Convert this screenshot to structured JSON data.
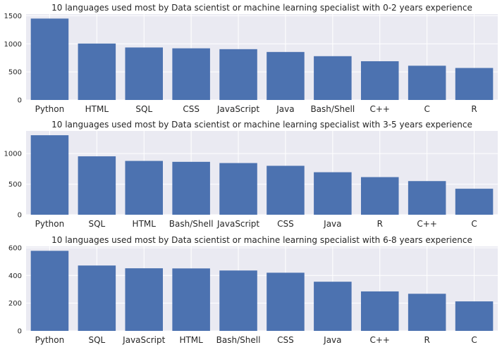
{
  "chart_data": [
    {
      "type": "bar",
      "title": "10 languages used most by Data scientist or machine learning specialist with 0-2 years experience",
      "categories": [
        "Python",
        "HTML",
        "SQL",
        "CSS",
        "JavaScript",
        "Java",
        "Bash/Shell",
        "C++",
        "C",
        "R"
      ],
      "values": [
        1450,
        1005,
        935,
        920,
        905,
        855,
        780,
        690,
        610,
        570
      ],
      "ylim": [
        0,
        1530
      ],
      "yticks": [
        0,
        500,
        1000,
        1500
      ],
      "grid": true,
      "bar_color": "#4c72b0",
      "axes_background": "#eaeaf2"
    },
    {
      "type": "bar",
      "title": "10 languages used most by Data scientist or machine learning specialist with 3-5 years experience",
      "categories": [
        "Python",
        "SQL",
        "HTML",
        "Bash/Shell",
        "JavaScript",
        "CSS",
        "Java",
        "R",
        "C++",
        "C"
      ],
      "values": [
        1300,
        955,
        880,
        865,
        845,
        800,
        695,
        615,
        550,
        425
      ],
      "ylim": [
        0,
        1370
      ],
      "yticks": [
        0,
        500,
        1000
      ],
      "grid": true,
      "bar_color": "#4c72b0",
      "axes_background": "#eaeaf2"
    },
    {
      "type": "bar",
      "title": "10 languages used most by Data scientist or machine learning specialist with 6-8 years experience",
      "categories": [
        "Python",
        "SQL",
        "JavaScript",
        "HTML",
        "Bash/Shell",
        "CSS",
        "Java",
        "C++",
        "R",
        "C"
      ],
      "values": [
        578,
        472,
        452,
        451,
        436,
        420,
        355,
        285,
        268,
        213
      ],
      "ylim": [
        0,
        610
      ],
      "yticks": [
        0,
        200,
        400,
        600
      ],
      "grid": true,
      "bar_color": "#4c72b0",
      "axes_background": "#eaeaf2"
    }
  ]
}
